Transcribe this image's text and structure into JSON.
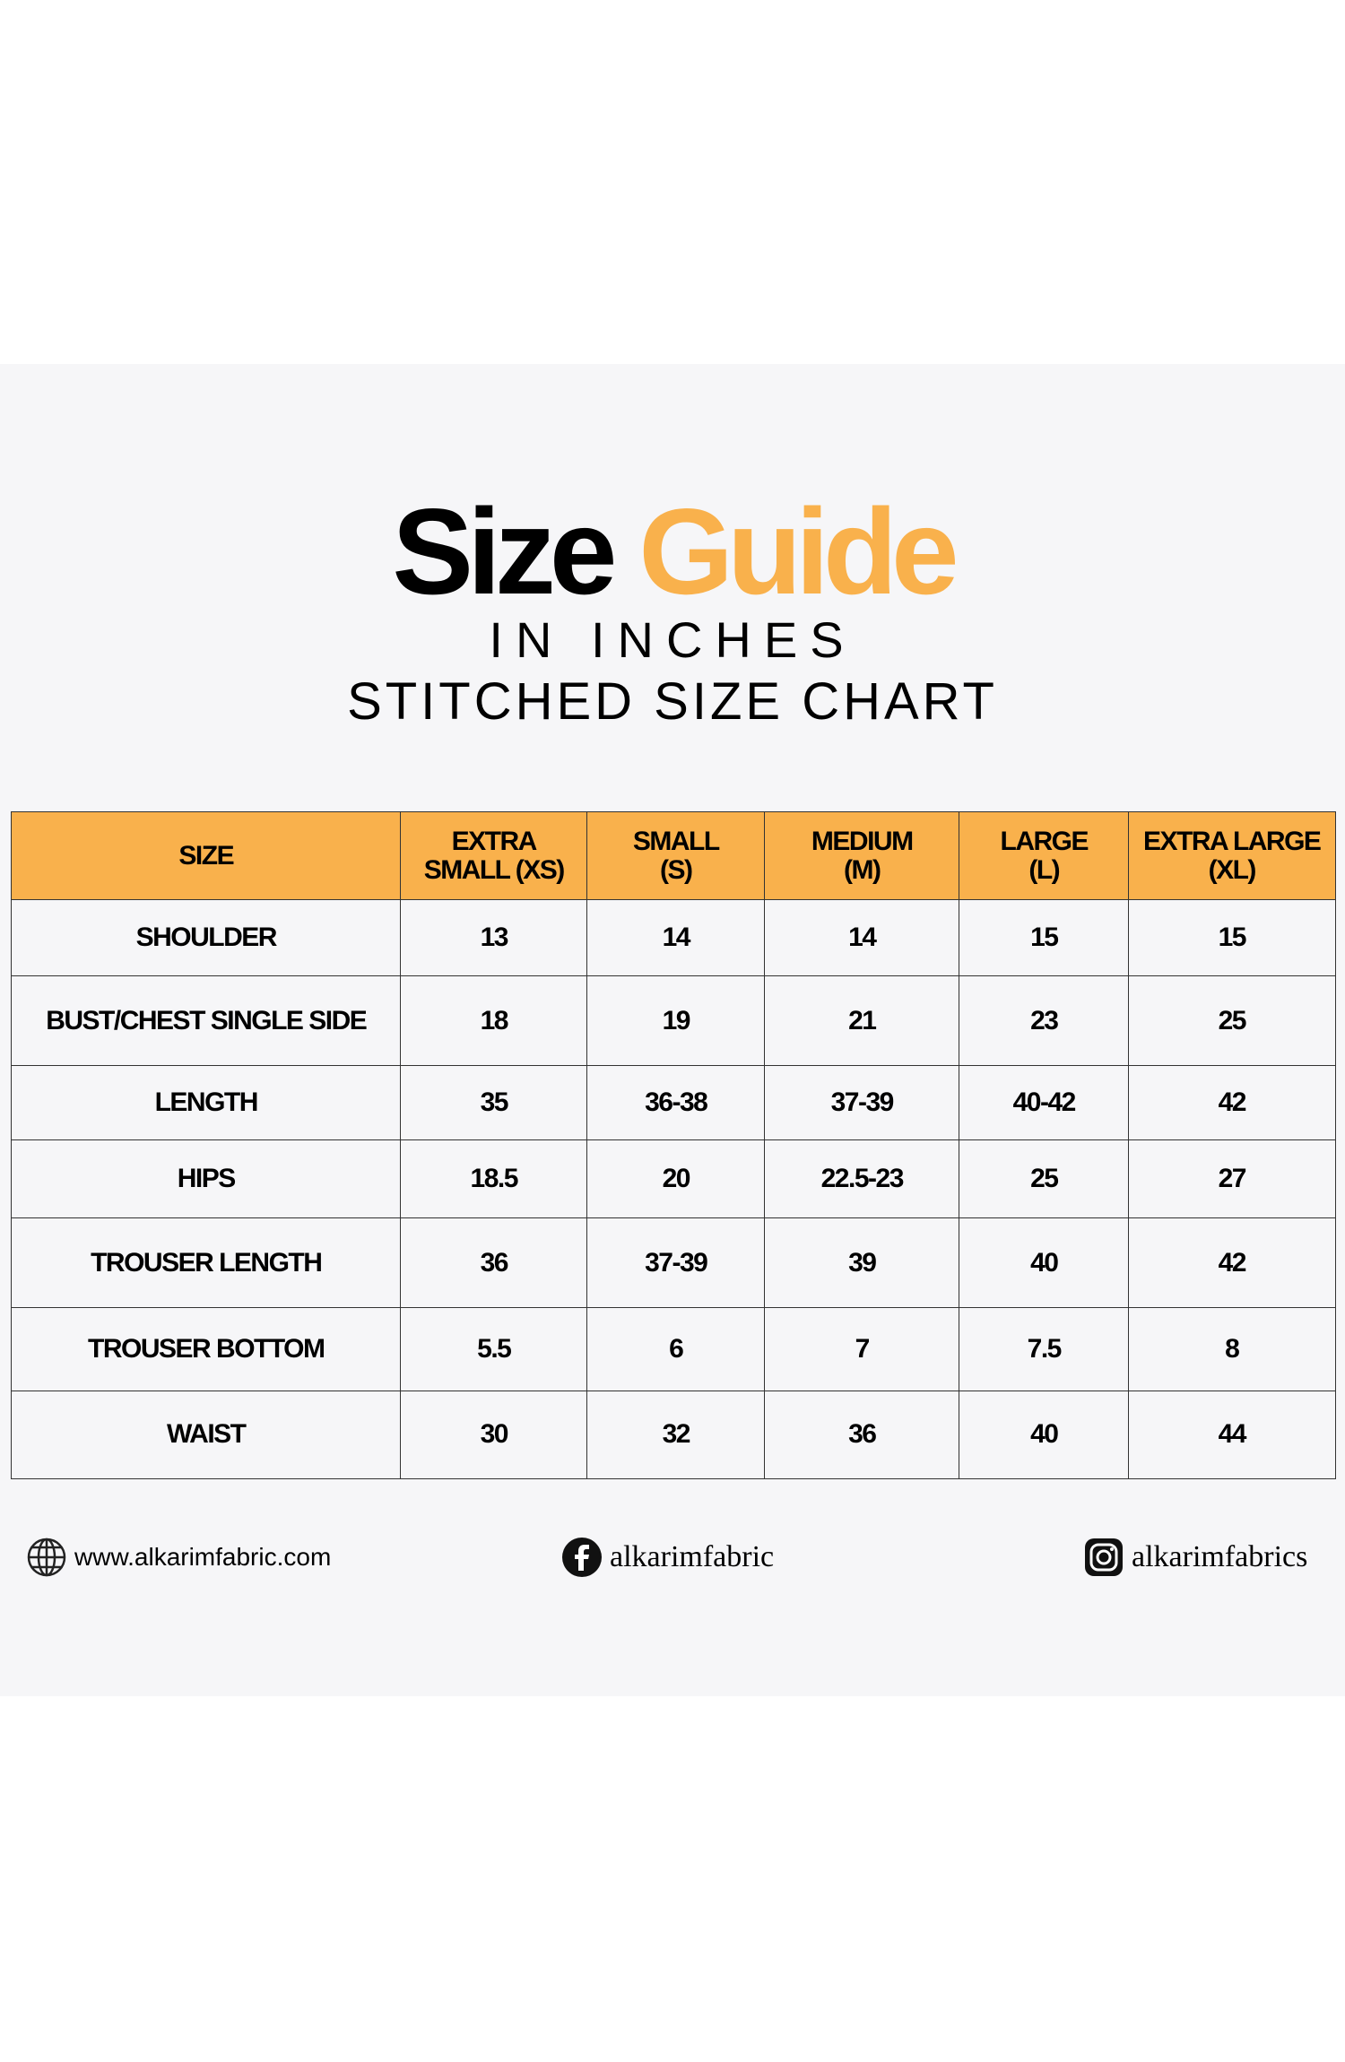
{
  "header": {
    "title_part1": "Size",
    "title_part2": "Guide",
    "subtitle": "IN INCHES",
    "subtitle2": "STITCHED SIZE CHART"
  },
  "table": {
    "header": [
      [
        "SIZE"
      ],
      [
        "EXTRA",
        "SMALL (XS)"
      ],
      [
        "SMALL",
        "(S)"
      ],
      [
        "MEDIUM",
        "(M)"
      ],
      [
        "LARGE",
        "(L)"
      ],
      [
        "EXTRA LARGE",
        "(XL)"
      ]
    ],
    "rows": [
      [
        "SHOULDER",
        "13",
        "14",
        "14",
        "15",
        "15"
      ],
      [
        "BUST/CHEST SINGLE SIDE",
        "18",
        "19",
        "21",
        "23",
        "25"
      ],
      [
        "LENGTH",
        "35",
        "36-38",
        "37-39",
        "40-42",
        "42"
      ],
      [
        "HIPS",
        "18.5",
        "20",
        "22.5-23",
        "25",
        "27"
      ],
      [
        "TROUSER LENGTH",
        "36",
        "37-39",
        "39",
        "40",
        "42"
      ],
      [
        "TROUSER BOTTOM",
        "5.5",
        "6",
        "7",
        "7.5",
        "8"
      ],
      [
        "WAIST",
        "30",
        "32",
        "36",
        "40",
        "44"
      ]
    ]
  },
  "footer": {
    "website": "www.alkarimfabric.com",
    "facebook": "alkarimfabric",
    "instagram": "alkarimfabrics"
  }
}
